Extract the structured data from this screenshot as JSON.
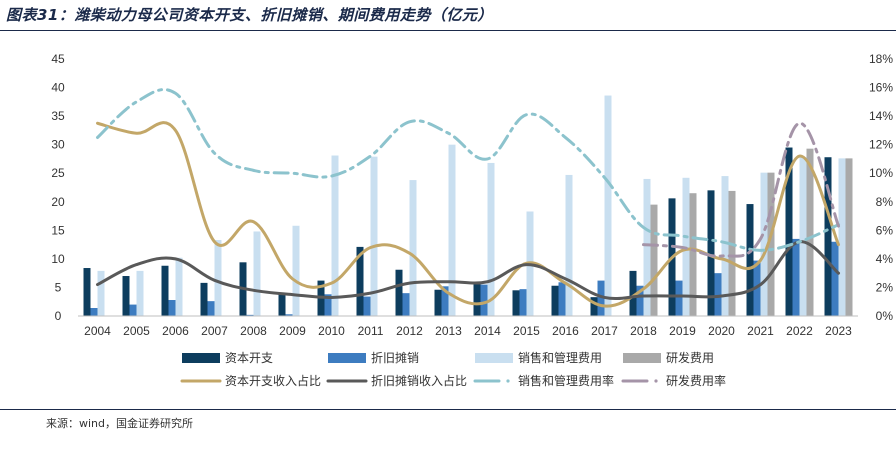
{
  "title": "图表31：潍柴动力母公司资本开支、折旧摊销、期间费用走势（亿元）",
  "source": "来源：wind，国金证券研究所",
  "chart_data": {
    "type": "bar",
    "categories": [
      "2004",
      "2005",
      "2006",
      "2007",
      "2008",
      "2009",
      "2010",
      "2011",
      "2012",
      "2013",
      "2014",
      "2015",
      "2016",
      "2017",
      "2018",
      "2019",
      "2020",
      "2021",
      "2022",
      "2023"
    ],
    "left_axis": {
      "ylim": [
        0,
        45
      ],
      "ticks": [
        "0",
        "5",
        "10",
        "15",
        "20",
        "25",
        "30",
        "35",
        "40",
        "45"
      ]
    },
    "right_axis": {
      "ylim": [
        0,
        18
      ],
      "ticks": [
        "0%",
        "2%",
        "4%",
        "6%",
        "8%",
        "10%",
        "12%",
        "14%",
        "16%",
        "18%"
      ]
    },
    "colors": {
      "capex": "#0d3d5e",
      "depreciation": "#3d7cc0",
      "sga": "#c9dff0",
      "rd": "#a9a9a9",
      "capex_ratio": "#c3a768",
      "dep_ratio": "#595959",
      "sga_ratio": "#8cc3cd",
      "rd_ratio": "#a594a8"
    },
    "series": [
      {
        "name": "资本开支",
        "kind": "bar",
        "axis": "left",
        "values": [
          8.4,
          7.0,
          8.8,
          5.8,
          9.4,
          3.8,
          6.2,
          12.1,
          8.1,
          4.6,
          5.8,
          4.5,
          5.3,
          3.3,
          7.9,
          20.6,
          22.0,
          19.6,
          29.5,
          27.8
        ]
      },
      {
        "name": "折旧摊销",
        "kind": "bar",
        "axis": "left",
        "values": [
          1.4,
          2.0,
          2.8,
          2.6,
          0.2,
          0.3,
          3.8,
          3.4,
          4.0,
          5.2,
          5.5,
          4.7,
          5.9,
          6.2,
          5.3,
          6.2,
          7.5,
          9.7,
          13.5,
          13.0
        ]
      },
      {
        "name": "销售和管理费用",
        "kind": "bar",
        "axis": "left",
        "values": [
          7.9,
          7.9,
          10.2,
          13.3,
          14.8,
          15.8,
          28.1,
          27.9,
          23.8,
          30.0,
          26.8,
          18.3,
          24.7,
          38.6,
          24.0,
          24.2,
          24.5,
          25.1,
          27.8,
          27.6
        ]
      },
      {
        "name": "研发费用",
        "kind": "bar",
        "axis": "left",
        "values": [
          null,
          null,
          null,
          null,
          null,
          null,
          null,
          null,
          null,
          null,
          null,
          null,
          null,
          null,
          19.5,
          21.5,
          21.9,
          25.1,
          29.3,
          27.6
        ]
      },
      {
        "name": "资本开支收入占比",
        "kind": "line",
        "axis": "right",
        "values": [
          13.5,
          12.8,
          13.0,
          5.2,
          6.6,
          2.6,
          2.3,
          4.8,
          4.4,
          1.6,
          1.0,
          3.7,
          2.3,
          0.7,
          1.9,
          4.6,
          4.0,
          3.9,
          11.2,
          5.0
        ]
      },
      {
        "name": "折旧摊销收入占比",
        "kind": "line",
        "axis": "right",
        "values": [
          2.2,
          3.6,
          4.0,
          2.5,
          1.8,
          1.5,
          1.3,
          1.6,
          2.3,
          2.4,
          2.4,
          3.6,
          2.6,
          1.3,
          1.4,
          1.4,
          1.4,
          2.2,
          5.2,
          3.0
        ]
      },
      {
        "name": "销售和管理费用率",
        "kind": "line",
        "axis": "right",
        "dashed": true,
        "values": [
          12.5,
          15.0,
          15.6,
          11.4,
          10.2,
          10.0,
          9.8,
          11.2,
          13.6,
          12.8,
          11.0,
          14.1,
          12.5,
          9.7,
          6.2,
          5.6,
          5.2,
          4.6,
          5.2,
          6.4
        ]
      },
      {
        "name": "研发费用率",
        "kind": "line",
        "axis": "right",
        "dashed": true,
        "values": [
          null,
          null,
          null,
          null,
          null,
          null,
          null,
          null,
          null,
          null,
          null,
          null,
          null,
          null,
          5.0,
          4.8,
          4.2,
          5.4,
          13.5,
          6.3
        ]
      }
    ]
  }
}
